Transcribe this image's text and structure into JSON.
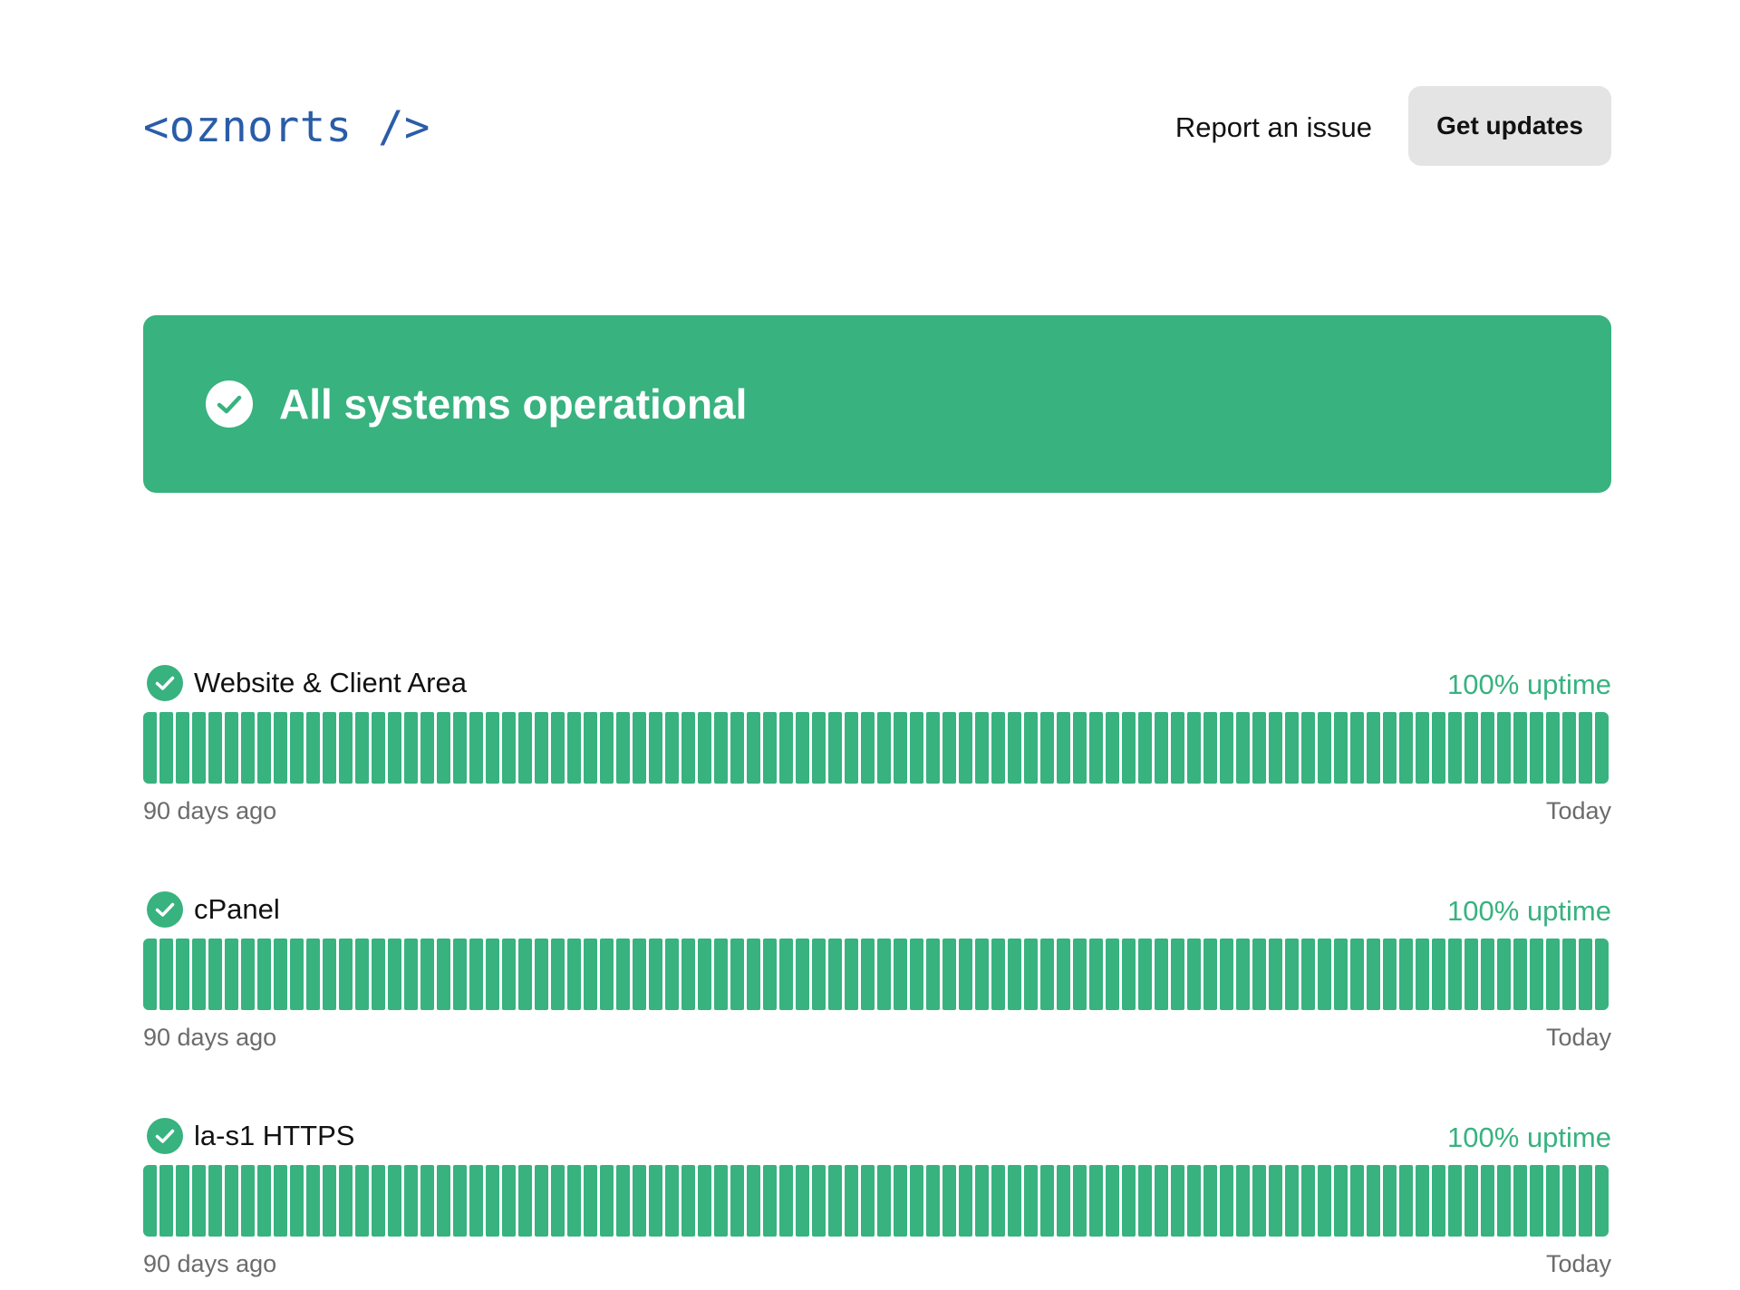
{
  "header": {
    "logo": "<oznorts />",
    "report_link": "Report an issue",
    "updates_button": "Get updates"
  },
  "banner": {
    "text": "All systems operational",
    "icon": "check-circle-icon"
  },
  "colors": {
    "operational": "#38b27f",
    "logo": "#2a5da8",
    "button_bg": "#e4e4e4"
  },
  "components": [
    {
      "name": "Website & Client Area",
      "uptime": "100% uptime",
      "range_start": "90 days ago",
      "range_end": "Today",
      "days": 90,
      "status": "operational"
    },
    {
      "name": "cPanel",
      "uptime": "100% uptime",
      "range_start": "90 days ago",
      "range_end": "Today",
      "days": 90,
      "status": "operational"
    },
    {
      "name": "la-s1 HTTPS",
      "uptime": "100% uptime",
      "range_start": "90 days ago",
      "range_end": "Today",
      "days": 90,
      "status": "operational"
    }
  ]
}
